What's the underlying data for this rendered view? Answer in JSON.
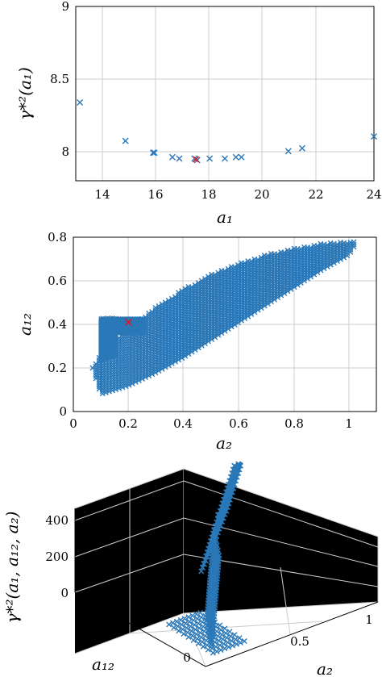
{
  "chart_data": [
    {
      "type": "scatter",
      "xlabel": "a₁",
      "ylabel": "γ*²(a₁)",
      "xlim": [
        13.2,
        24
      ],
      "ylim": [
        7.82,
        9
      ],
      "xticks": [
        "14",
        "16",
        "18",
        "20",
        "22",
        "24"
      ],
      "yticks": [
        "8",
        "8.5",
        "9"
      ],
      "grid": true,
      "series": [
        {
          "color": "#2a78b8",
          "x": [
            13.35,
            15.0,
            16.0,
            16.05,
            16.7,
            16.95,
            17.5,
            17.6,
            18.05,
            18.6,
            19.0,
            19.2,
            20.9,
            21.4,
            24.0
          ],
          "y": [
            8.35,
            8.09,
            8.01,
            8.01,
            7.98,
            7.97,
            7.97,
            7.96,
            7.97,
            7.97,
            7.98,
            7.98,
            8.02,
            8.04,
            8.12
          ]
        },
        {
          "color": "#d21f2c",
          "x": [
            17.55
          ],
          "y": [
            7.965
          ]
        }
      ]
    },
    {
      "type": "scatter",
      "xlabel": "a₂",
      "ylabel": "a₁₂",
      "xlim": [
        0,
        1.1
      ],
      "ylim": [
        0,
        0.8
      ],
      "xticks": [
        "0",
        "0.2",
        "0.4",
        "0.6",
        "0.8",
        "1"
      ],
      "yticks": [
        "0",
        "0.2",
        "0.4",
        "0.6",
        "0.8"
      ],
      "grid": true,
      "region": {
        "lower_boundary": [
          [
            0.07,
            0.2
          ],
          [
            0.1,
            0.08
          ],
          [
            0.2,
            0.12
          ],
          [
            0.3,
            0.18
          ],
          [
            0.4,
            0.25
          ],
          [
            0.5,
            0.33
          ],
          [
            0.6,
            0.41
          ],
          [
            0.7,
            0.49
          ],
          [
            0.8,
            0.57
          ],
          [
            0.9,
            0.65
          ],
          [
            1.0,
            0.72
          ],
          [
            1.03,
            0.78
          ]
        ],
        "upper_boundary": [
          [
            0.07,
            0.2
          ],
          [
            0.1,
            0.27
          ],
          [
            0.2,
            0.38
          ],
          [
            0.3,
            0.48
          ],
          [
            0.4,
            0.56
          ],
          [
            0.5,
            0.63
          ],
          [
            0.6,
            0.68
          ],
          [
            0.7,
            0.72
          ],
          [
            0.8,
            0.75
          ],
          [
            0.9,
            0.77
          ],
          [
            1.0,
            0.78
          ],
          [
            1.03,
            0.78
          ]
        ],
        "dense_cluster": {
          "a2_range": [
            0.1,
            0.26
          ],
          "a12_range": [
            0.24,
            0.43
          ]
        },
        "color": "#2a78b8"
      },
      "optimum": {
        "a2": 0.2,
        "a12": 0.41,
        "color": "#d21f2c"
      }
    },
    {
      "type": "scatter3d",
      "xlabel": "a₁₂",
      "ylabel": "a₂",
      "zlabel": "γ*²(a₁, a₁₂, a₂)",
      "xticks": [
        "0",
        "0.5"
      ],
      "yticks": [
        "0.5",
        "1"
      ],
      "zticks": [
        "0",
        "200",
        "400"
      ],
      "zlim": [
        0,
        480
      ],
      "grid": true,
      "color": "#2a78b8"
    }
  ]
}
